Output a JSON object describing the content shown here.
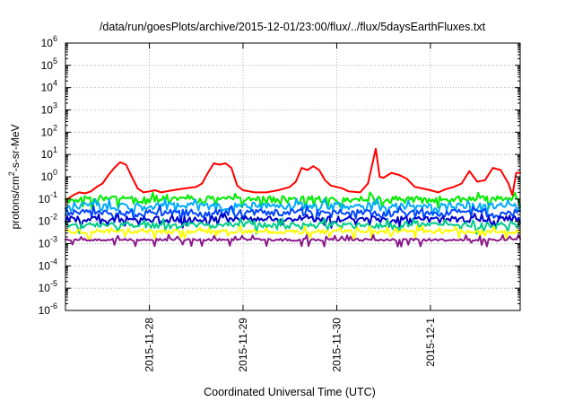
{
  "chart_data": {
    "type": "line",
    "title": "/data/run/goesPlots/archive/2015-12-01/23:00/flux/../flux/5daysEarthFluxes.txt",
    "xlabel": "Coordinated Universal Time (UTC)",
    "ylabel": "protons/cm²-s-sr-MeV",
    "yscale": "log",
    "ylim": [
      1e-06,
      1000000.0
    ],
    "xlim": [
      "2015-11-27 02:30",
      "2015-12-01 23:00"
    ],
    "grid": true,
    "yticks": [
      {
        "value": 1e-06,
        "base": "10",
        "exp": "-6"
      },
      {
        "value": 1e-05,
        "base": "10",
        "exp": "-5"
      },
      {
        "value": 0.0001,
        "base": "10",
        "exp": "-4"
      },
      {
        "value": 0.001,
        "base": "10",
        "exp": "-3"
      },
      {
        "value": 0.01,
        "base": "10",
        "exp": "-2"
      },
      {
        "value": 0.1,
        "base": "10",
        "exp": "-1"
      },
      {
        "value": 1.0,
        "base": "10",
        "exp": "0"
      },
      {
        "value": 10.0,
        "base": "10",
        "exp": "1"
      },
      {
        "value": 100.0,
        "base": "10",
        "exp": "2"
      },
      {
        "value": 1000.0,
        "base": "10",
        "exp": "3"
      },
      {
        "value": 10000.0,
        "base": "10",
        "exp": "4"
      },
      {
        "value": 100000.0,
        "base": "10",
        "exp": "5"
      },
      {
        "value": 1000000.0,
        "base": "10",
        "exp": "6"
      }
    ],
    "xticks": [
      {
        "value": "2015-11-28",
        "label": "2015-11-28"
      },
      {
        "value": "2015-11-29",
        "label": "2015-11-29"
      },
      {
        "value": "2015-11-30",
        "label": "2015-11-30"
      },
      {
        "value": "2015-12-01",
        "label": "2015-12-1"
      }
    ],
    "series": [
      {
        "color": "#ff0000",
        "x": [
          "2015-11-27 03:00",
          "2015-11-27 04:30",
          "2015-11-27 06:00",
          "2015-11-27 07:30",
          "2015-11-27 09:00",
          "2015-11-27 10:30",
          "2015-11-27 12:00",
          "2015-11-27 13:30",
          "2015-11-27 15:00",
          "2015-11-27 16:30",
          "2015-11-27 18:00",
          "2015-11-27 19:30",
          "2015-11-27 21:00",
          "2015-11-27 22:30",
          "2015-11-28 00:00",
          "2015-11-28 01:30",
          "2015-11-28 03:00",
          "2015-11-28 06:00",
          "2015-11-28 09:00",
          "2015-11-28 12:00",
          "2015-11-28 13:30",
          "2015-11-28 15:00",
          "2015-11-28 16:30",
          "2015-11-28 18:00",
          "2015-11-28 19:30",
          "2015-11-28 21:00",
          "2015-11-28 22:30",
          "2015-11-29 00:00",
          "2015-11-29 03:00",
          "2015-11-29 06:00",
          "2015-11-29 09:00",
          "2015-11-29 12:00",
          "2015-11-29 13:30",
          "2015-11-29 15:00",
          "2015-11-29 16:30",
          "2015-11-29 18:00",
          "2015-11-29 19:30",
          "2015-11-29 21:00",
          "2015-11-29 22:30",
          "2015-11-30 00:00",
          "2015-11-30 01:30",
          "2015-11-30 03:00",
          "2015-11-30 06:00",
          "2015-11-30 08:00",
          "2015-11-30 09:00",
          "2015-11-30 10:00",
          "2015-11-30 11:00",
          "2015-11-30 12:00",
          "2015-11-30 14:00",
          "2015-11-30 16:00",
          "2015-11-30 18:00",
          "2015-11-30 20:00",
          "2015-11-30 22:00",
          "2015-12-01 00:00",
          "2015-12-01 02:00",
          "2015-12-01 04:00",
          "2015-12-01 06:00",
          "2015-12-01 08:00",
          "2015-12-01 10:00",
          "2015-12-01 12:00",
          "2015-12-01 14:00",
          "2015-12-01 16:00",
          "2015-12-01 18:00",
          "2015-12-01 20:00",
          "2015-12-01 21:00",
          "2015-12-01 22:00",
          "2015-12-01 23:00"
        ],
        "y": [
          0.1,
          0.15,
          0.2,
          0.18,
          0.22,
          0.35,
          0.5,
          1.2,
          2.5,
          4.5,
          3.5,
          1.0,
          0.3,
          0.2,
          0.22,
          0.25,
          0.2,
          0.25,
          0.3,
          0.35,
          0.5,
          1.5,
          4.0,
          3.5,
          4.0,
          2.5,
          0.4,
          0.25,
          0.2,
          0.2,
          0.25,
          0.35,
          0.6,
          2.5,
          2.0,
          3.0,
          2.0,
          0.7,
          0.4,
          0.35,
          0.3,
          0.22,
          0.2,
          0.5,
          3.0,
          18,
          1.0,
          0.9,
          1.5,
          1.2,
          0.8,
          0.35,
          0.3,
          0.25,
          0.2,
          0.28,
          0.35,
          0.5,
          1.8,
          0.6,
          0.7,
          2.5,
          2.0,
          0.5,
          0.15,
          1.5,
          1.5
        ]
      },
      {
        "color": "#00ee00",
        "base": 0.1,
        "amp": 0.35,
        "seed": 11
      },
      {
        "color": "#00aaff",
        "base": 0.05,
        "amp": 0.4,
        "seed": 23
      },
      {
        "color": "#0044ff",
        "base": 0.025,
        "amp": 0.35,
        "seed": 37
      },
      {
        "color": "#0000cc",
        "base": 0.013,
        "amp": 0.3,
        "seed": 53
      },
      {
        "color": "#00cc88",
        "base": 0.007,
        "amp": 0.3,
        "seed": 71
      },
      {
        "color": "#ffff00",
        "base": 0.0035,
        "amp": 0.2,
        "seed": 89
      },
      {
        "color": "#8b1a8b",
        "base": 0.0015,
        "amp": 0.12,
        "seed": 97
      }
    ]
  }
}
